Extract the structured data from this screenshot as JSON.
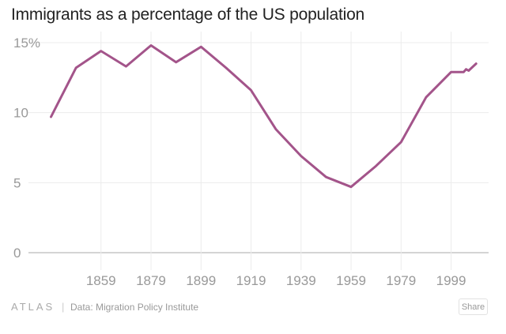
{
  "chart_data": {
    "type": "line",
    "title": "Immigrants as a percentage of the US population",
    "xlabel": "",
    "ylabel": "",
    "xlim": [
      1830,
      2014
    ],
    "ylim": [
      0,
      15
    ],
    "x_ticks": [
      1859,
      1879,
      1899,
      1919,
      1939,
      1959,
      1979,
      1999
    ],
    "y_ticks": [
      {
        "value": 0,
        "label": "0"
      },
      {
        "value": 5,
        "label": "5"
      },
      {
        "value": 10,
        "label": "10"
      },
      {
        "value": 15,
        "label": "15%"
      }
    ],
    "grid": true,
    "series": [
      {
        "name": "Immigrants as % of US population",
        "color": "#a3548a",
        "x": [
          1839,
          1849,
          1859,
          1869,
          1879,
          1889,
          1899,
          1909,
          1919,
          1929,
          1939,
          1949,
          1959,
          1969,
          1979,
          1989,
          1999,
          2004,
          2005,
          2006,
          2009
        ],
        "values": [
          9.7,
          13.2,
          14.4,
          13.3,
          14.8,
          13.6,
          14.7,
          13.2,
          11.6,
          8.8,
          6.9,
          5.4,
          4.7,
          6.2,
          7.9,
          11.1,
          12.9,
          12.9,
          13.1,
          13.0,
          13.5
        ]
      }
    ]
  },
  "footer": {
    "logo": "ATLAS",
    "separator": "|",
    "source": "Data: Migration Policy Institute",
    "share_label": "Share"
  },
  "colors": {
    "line": "#a3548a",
    "grid": "#ececec",
    "axis": "#bbbbbb",
    "tick_text": "#999999",
    "title": "#222222"
  }
}
